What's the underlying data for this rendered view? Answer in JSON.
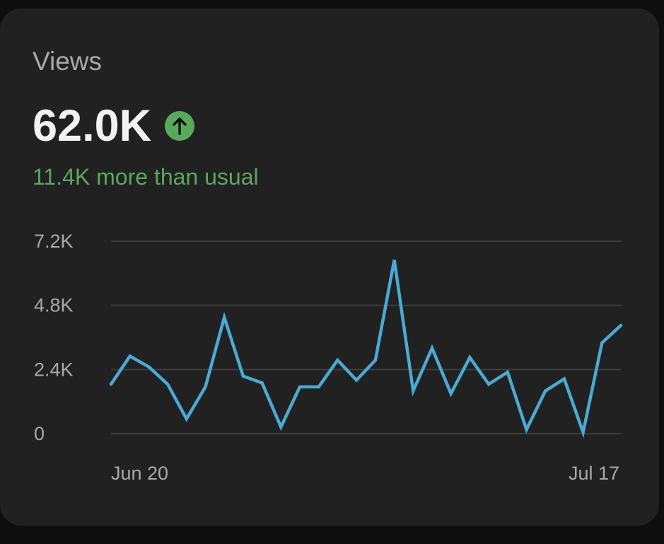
{
  "card": {
    "title": "Views",
    "value": "62.0K",
    "trend_icon": "arrow-up-circle-icon",
    "delta_text": "11.4K more than usual"
  },
  "colors": {
    "background": "#212121",
    "line": "#4aaad3",
    "positive": "#5aa85c",
    "grid": "#3d3d3d"
  },
  "chart_data": {
    "type": "line",
    "y_ticks": [
      "7.2K",
      "4.8K",
      "2.4K",
      "0"
    ],
    "y_tick_values": [
      7200,
      4800,
      2400,
      0
    ],
    "ylim": [
      0,
      7200
    ],
    "x_tick_labels": [
      "Jun 20",
      "Jul 17"
    ],
    "grid": true,
    "series": [
      {
        "values": [
          1850,
          2900,
          2500,
          1850,
          550,
          1750,
          4350,
          2150,
          1900,
          250,
          1750,
          1750,
          2750,
          2000,
          2750,
          6500,
          1600,
          3200,
          1500,
          2850,
          1850,
          2300,
          150,
          1600,
          2050,
          50,
          3400,
          4050
        ]
      }
    ]
  }
}
